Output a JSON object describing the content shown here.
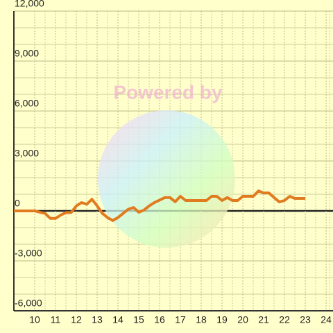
{
  "chart_data": {
    "type": "line",
    "watermark": "Powered by",
    "x": [
      9,
      9.25,
      9.5,
      9.75,
      10,
      10.25,
      10.5,
      10.75,
      11,
      11.25,
      11.5,
      11.75,
      12,
      12.25,
      12.5,
      12.75,
      13,
      13.25,
      13.5,
      13.75,
      14,
      14.25,
      14.5,
      14.75,
      15,
      15.25,
      15.5,
      15.75,
      16,
      16.25,
      16.5,
      16.75,
      17,
      17.25,
      17.5,
      17.75,
      18,
      18.25,
      18.5,
      18.75,
      19,
      19.25,
      19.5,
      19.75,
      20,
      20.25,
      20.5,
      20.75,
      21,
      21.25,
      21.5,
      21.75,
      22,
      22.25,
      22.5,
      22.75,
      23
    ],
    "values": [
      0,
      0,
      0,
      0,
      0,
      -80,
      -150,
      -450,
      -450,
      -250,
      -100,
      -100,
      300,
      500,
      400,
      700,
      300,
      -150,
      -400,
      -580,
      -400,
      -150,
      100,
      200,
      -80,
      50,
      300,
      500,
      650,
      800,
      800,
      550,
      875,
      625,
      625,
      625,
      625,
      625,
      875,
      875,
      625,
      800,
      625,
      625,
      875,
      875,
      875,
      1200,
      1080,
      1080,
      800,
      540,
      625,
      875,
      750,
      750,
      750
    ],
    "color": "#e07b20",
    "xlim": [
      9,
      24.33
    ],
    "xticks": [
      10,
      11,
      12,
      13,
      14,
      15,
      16,
      17,
      18,
      19,
      20,
      21,
      22,
      23,
      24
    ],
    "ylim": [
      -6000,
      12000
    ],
    "yticks": [
      {
        "value": -6000,
        "label": "-6,000"
      },
      {
        "value": -3000,
        "label": "-3,000"
      },
      0,
      {
        "value": 3000,
        "label": "3,000"
      },
      {
        "value": 6000,
        "label": "6,000"
      },
      {
        "value": 9000,
        "label": "9,000"
      },
      {
        "value": 12000,
        "label": "12,000"
      }
    ],
    "grid": true
  }
}
